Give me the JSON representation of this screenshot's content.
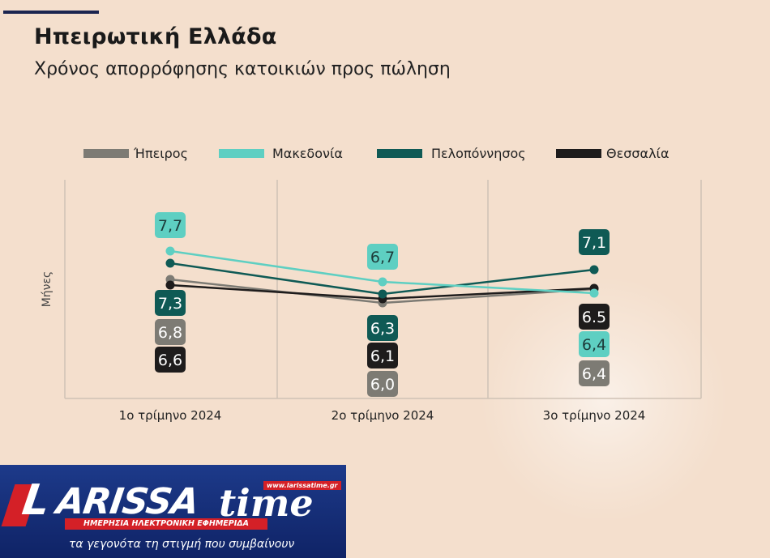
{
  "header": {
    "title": "Ηπειρωτική Ελλάδα",
    "subtitle": "Χρόνος απορρόφησης κατοικιών προς πώληση"
  },
  "chart_data": {
    "type": "line",
    "categories": [
      "1ο τρίμηνο 2024",
      "2ο τρίμηνο 2024",
      "3ο τρίμηνο 2024"
    ],
    "ylabel": "Μήνες",
    "ylim": [
      5.5,
      8.5
    ],
    "grid": "vertical",
    "legend_position": "top",
    "series": [
      {
        "name": "Ήπειρος",
        "color": "#7d7b74",
        "values": [
          6.8,
          6.0,
          6.4
        ],
        "labels": [
          "6,8",
          "6,0",
          "6,4"
        ]
      },
      {
        "name": "Μακεδονία",
        "color": "#5ecfc2",
        "values": [
          7.7,
          6.7,
          6.4
        ],
        "labels": [
          "7,7",
          "6,7",
          "6,4"
        ]
      },
      {
        "name": "Πελοπόννησος",
        "color": "#0f5a55",
        "values": [
          7.3,
          6.3,
          7.1
        ],
        "labels": [
          "7,3",
          "6,3",
          "7,1"
        ]
      },
      {
        "name": "Θεσσαλία",
        "color": "#1e1c1c",
        "values": [
          6.6,
          6.1,
          6.5
        ],
        "labels": [
          "6,6",
          "6,1",
          "6.5"
        ]
      }
    ]
  },
  "logo": {
    "letter": "L",
    "word": "ARISSA",
    "time": "time",
    "url": "www.larissatime.gr",
    "band": "ΗΜΕΡΗΣΙΑ ΗΛΕΚΤΡΟΝΙΚΗ ΕΦΗΜΕΡΙΔΑ",
    "tagline": "τα γεγονότα τη στιγμή που συμβαίνουν"
  }
}
